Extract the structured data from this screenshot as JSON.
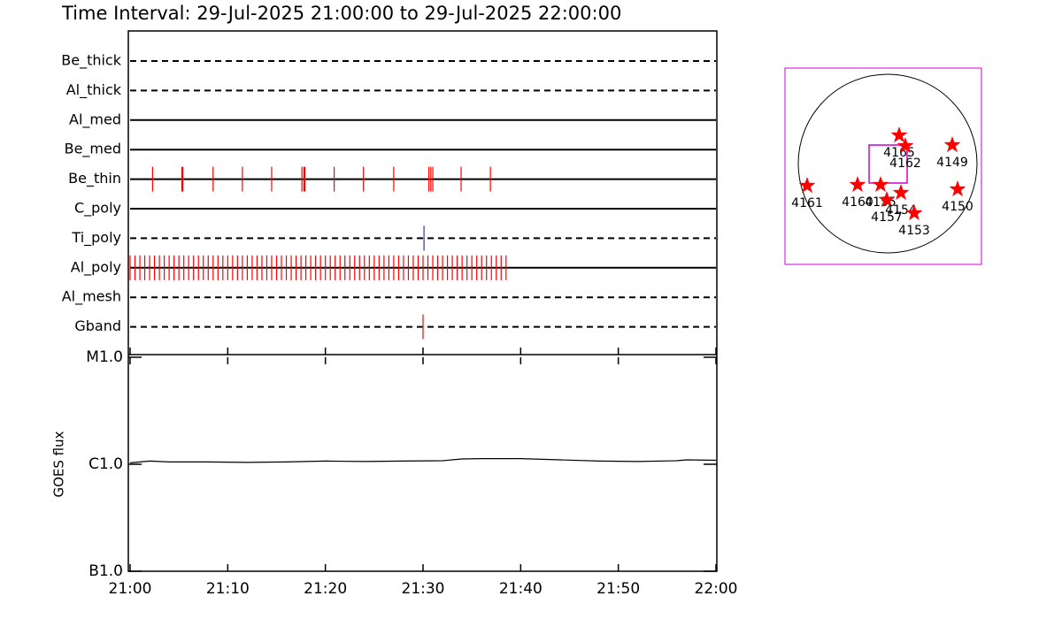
{
  "chart_data": [
    {
      "type": "timeline",
      "title": "Time Interval: 29-Jul-2025 21:00:00 to 29-Jul-2025 22:00:00",
      "xlim": [
        0,
        60
      ],
      "xticks": [
        0,
        10,
        20,
        30,
        40,
        50,
        60
      ],
      "series": [
        {
          "name": "Be_thick",
          "style": "dashed",
          "color": "#ff0000",
          "x": []
        },
        {
          "name": "Al_thick",
          "style": "dashed",
          "color": "#ff0000",
          "x": []
        },
        {
          "name": "Al_med",
          "style": "solid",
          "color": "#ff0000",
          "x": []
        },
        {
          "name": "Be_med",
          "style": "solid",
          "color": "#ff0000",
          "x": []
        },
        {
          "name": "Be_thin",
          "style": "solid",
          "color": "#ff0000",
          "x": [
            2.3,
            5.3,
            5.4,
            8.5,
            11.5,
            14.5,
            17.6,
            17.8,
            17.9,
            20.9,
            23.9,
            27.0,
            30.6,
            30.8,
            31.0,
            33.9,
            36.9
          ]
        },
        {
          "name": "C_poly",
          "style": "solid",
          "color": "#ff0000",
          "x": []
        },
        {
          "name": "Ti_poly",
          "style": "dashed",
          "color": "#3030a0",
          "x": [
            30.1
          ]
        },
        {
          "name": "Al_poly",
          "style": "solid",
          "color": "#ff0000",
          "x": [
            0,
            0.5,
            1,
            1.5,
            2,
            2.5,
            3,
            3.5,
            4,
            4.5,
            5,
            5.5,
            6,
            6.5,
            7,
            7.5,
            8,
            8.5,
            9,
            9.5,
            10,
            10.5,
            11,
            11.5,
            12,
            12.5,
            13,
            13.5,
            14,
            14.5,
            15,
            15.5,
            16,
            16.5,
            17,
            17.5,
            18,
            18.5,
            19,
            19.5,
            20,
            20.5,
            21,
            21.5,
            22,
            22.5,
            23,
            23.5,
            24,
            24.5,
            25,
            25.5,
            26,
            26.5,
            27,
            27.5,
            28,
            28.5,
            29,
            29.5,
            30,
            30.5,
            31,
            31.5,
            32,
            32.5,
            33,
            33.5,
            34,
            34.5,
            35,
            35.5,
            36,
            36.5,
            37,
            37.5,
            38,
            38.5
          ]
        },
        {
          "name": "Al_mesh",
          "style": "dashed",
          "color": "#ff0000",
          "x": []
        },
        {
          "name": "Gband",
          "style": "dashed",
          "color": "#ff0000",
          "x": [
            30.0
          ]
        }
      ]
    },
    {
      "type": "line",
      "y_label": "GOES flux",
      "ylog": true,
      "color": "#000000",
      "xlim": [
        0,
        60
      ],
      "xticks": [
        {
          "value": 0,
          "label": "21:00"
        },
        {
          "value": 10,
          "label": "21:10"
        },
        {
          "value": 20,
          "label": "21:20"
        },
        {
          "value": 30,
          "label": "21:30"
        },
        {
          "value": 40,
          "label": "21:40"
        },
        {
          "value": 50,
          "label": "21:50"
        },
        {
          "value": 60,
          "label": "22:00"
        }
      ],
      "ylim": [
        1e-07,
        1e-05
      ],
      "yticks": [
        {
          "value": 1e-07,
          "label": "B1.0"
        },
        {
          "value": 1e-06,
          "label": "C1.0"
        },
        {
          "value": 1e-05,
          "label": "M1.0"
        }
      ],
      "x": [
        0,
        1,
        2,
        4,
        8,
        12,
        16,
        20,
        24,
        28,
        32,
        34,
        36,
        40,
        44,
        48,
        52,
        56,
        57,
        60
      ],
      "values": [
        1.03e-06,
        1.05e-06,
        1.07e-06,
        1.05e-06,
        1.05e-06,
        1.04e-06,
        1.05e-06,
        1.07e-06,
        1.06e-06,
        1.07e-06,
        1.08e-06,
        1.12e-06,
        1.13e-06,
        1.13e-06,
        1.1e-06,
        1.07e-06,
        1.06e-06,
        1.08e-06,
        1.1e-06,
        1.09e-06
      ]
    },
    {
      "type": "scatter",
      "color": "#ff0000",
      "xlim": [
        -1110,
        1110
      ],
      "ylim": [
        -1110,
        1110
      ],
      "labels": [
        "4165",
        "4162",
        "4149",
        "4161",
        "4160",
        "4155",
        "4157",
        "4154",
        "4153",
        "4150"
      ],
      "x": [
        180,
        250,
        780,
        -860,
        -290,
        -30,
        40,
        200,
        350,
        840
      ],
      "values": [
        350,
        230,
        240,
        -220,
        -210,
        -210,
        -380,
        -300,
        -530,
        -260
      ]
    }
  ]
}
